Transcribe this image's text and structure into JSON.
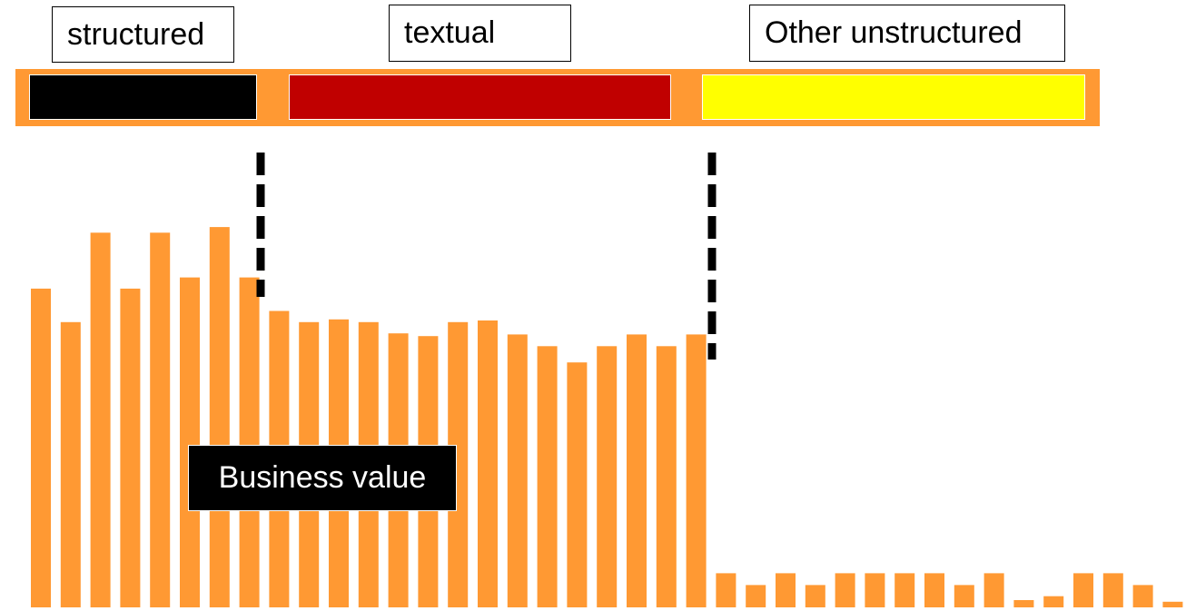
{
  "chart_data": {
    "type": "bar",
    "categories_header": {
      "structured": "structured",
      "textual": "textual",
      "other": "Other unstructured"
    },
    "annotation": "Business value",
    "values": [
      57,
      51,
      67,
      57,
      67,
      59,
      68,
      59,
      53,
      51,
      51.5,
      51,
      49,
      48.5,
      51,
      51.3,
      48.8,
      46.7,
      43.8,
      46.7,
      48.8,
      46.7,
      48.8,
      6.1,
      4.0,
      6.1,
      4.0,
      6.1,
      6.1,
      6.1,
      6.1,
      4.0,
      6.1,
      1.3,
      2.0,
      6.1,
      6.1,
      4.0,
      1.0
    ],
    "bar_color": "#ff9933",
    "segment_colors": {
      "structured": "#000000",
      "textual": "#c00000",
      "other": "#ffff00"
    },
    "strip_color": "#ff9933",
    "divider_color": "#000000",
    "ylim": [
      0,
      100
    ]
  }
}
